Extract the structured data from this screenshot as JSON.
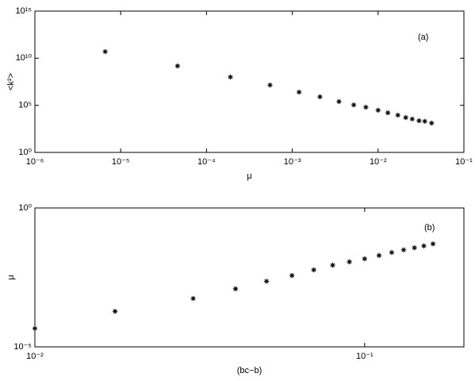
{
  "chart_data": [
    {
      "type": "scatter",
      "annotation": "(a)",
      "xlabel": "μ",
      "ylabel": "<k²>",
      "xscale": "log",
      "yscale": "log",
      "color": "#000000",
      "xlim": [
        1e-06,
        0.1
      ],
      "xticks": [
        {
          "value": 1e-06,
          "label": "10⁻⁶"
        },
        {
          "value": 1e-05,
          "label": "10⁻⁵"
        },
        {
          "value": 0.0001,
          "label": "10⁻⁴"
        },
        {
          "value": 0.001,
          "label": "10⁻³"
        },
        {
          "value": 0.01,
          "label": "10⁻²"
        },
        {
          "value": 0.1,
          "label": "10⁻¹"
        }
      ],
      "ylim": [
        1,
        1000000000000000.0
      ],
      "yticks": [
        {
          "value": 1,
          "label": "10⁰"
        },
        {
          "value": 100000.0,
          "label": "10⁵"
        },
        {
          "value": 10000000000.0,
          "label": "10¹⁰"
        },
        {
          "value": 1000000000000000.0,
          "label": "10¹⁵"
        }
      ],
      "x": [
        6.6e-06,
        4.6e-05,
        0.00019,
        0.00055,
        0.0012,
        0.0021,
        0.0035,
        0.0052,
        0.0072,
        0.01,
        0.013,
        0.017,
        0.021,
        0.025,
        0.03,
        0.035,
        0.042
      ],
      "values": [
        50000000000.0,
        1500000000.0,
        100000000.0,
        14000000.0,
        2500000.0,
        800000.0,
        250000.0,
        110000.0,
        63000.0,
        30000.0,
        16000.0,
        9000.0,
        5000.0,
        3500.0,
        2300.0,
        2000.0,
        1300.0
      ]
    },
    {
      "type": "scatter",
      "annotation": "(b)",
      "xlabel": "(bc−b)",
      "ylabel": "μ",
      "xscale": "log",
      "yscale": "log",
      "color": "#000000",
      "xlim": [
        0.01,
        0.2
      ],
      "xticks": [
        {
          "value": 0.01,
          "label": "10⁻²"
        },
        {
          "value": 0.1,
          "label": "10⁻¹"
        }
      ],
      "ylim": [
        1e-05,
        1
      ],
      "yticks": [
        {
          "value": 1e-05,
          "label": "10⁻⁵"
        },
        {
          "value": 1,
          "label": "10⁰"
        }
      ],
      "x": [
        0.01,
        0.0175,
        0.0302,
        0.0406,
        0.0504,
        0.0602,
        0.0701,
        0.08,
        0.0899,
        0.1,
        0.1106,
        0.1208,
        0.1313,
        0.1416,
        0.1512,
        0.1612
      ],
      "values": [
        4.6e-05,
        0.00019,
        0.00055,
        0.00123,
        0.0023,
        0.0037,
        0.0059,
        0.0087,
        0.0115,
        0.0148,
        0.0195,
        0.025,
        0.031,
        0.037,
        0.043,
        0.051
      ]
    }
  ]
}
